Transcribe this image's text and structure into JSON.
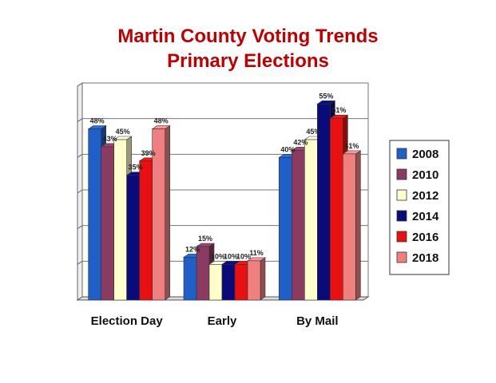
{
  "chart_data": {
    "type": "bar",
    "title": "Martin County Voting Trends",
    "subtitle": "Primary Elections",
    "categories": [
      "Election Day",
      "Early",
      "By Mail"
    ],
    "series": [
      {
        "name": "2008",
        "color": "#1f5fc8",
        "values": [
          48,
          12,
          40
        ]
      },
      {
        "name": "2010",
        "color": "#8b3a62",
        "values": [
          43,
          15,
          42
        ]
      },
      {
        "name": "2012",
        "color": "#ffffcc",
        "values": [
          45,
          10,
          45
        ]
      },
      {
        "name": "2014",
        "color": "#0a0a78",
        "values": [
          35,
          10,
          55
        ]
      },
      {
        "name": "2016",
        "color": "#e81010",
        "values": [
          39,
          10,
          51
        ]
      },
      {
        "name": "2018",
        "color": "#f08080",
        "values": [
          48,
          11,
          41
        ]
      }
    ],
    "data_label_suffix": "%",
    "ylim": [
      0,
      60
    ],
    "grid": true,
    "legend_position": "right"
  }
}
